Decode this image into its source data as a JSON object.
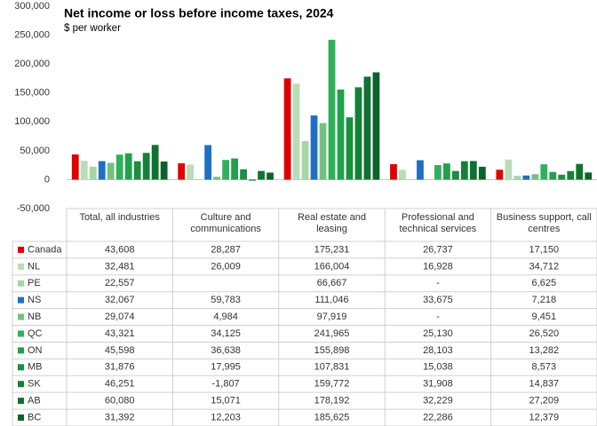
{
  "chart_data": {
    "type": "bar",
    "title": "Net income or loss before income taxes, 2024",
    "subtitle": "$ per worker",
    "categories": [
      "Total, all industries",
      "Culture and communications",
      "Real estate and leasing",
      "Professional and technical services",
      "Business support, call centres"
    ],
    "ylim": [
      -50000,
      300000
    ],
    "yticks": [
      {
        "value": -50000,
        "label": "-50,000"
      },
      0,
      {
        "value": 50000,
        "label": "50,000"
      },
      {
        "value": 100000,
        "label": "100,000"
      },
      {
        "value": 150000,
        "label": "150,000"
      },
      {
        "value": 200000,
        "label": "200,000"
      },
      {
        "value": 250000,
        "label": "250,000"
      },
      {
        "value": 300000,
        "label": "300,000"
      }
    ],
    "grid": false,
    "series": [
      {
        "name": "Canada",
        "color": "#e00000",
        "values": [
          43608,
          28287,
          175231,
          26737,
          17150
        ],
        "value_labels": [
          "43,608",
          "28,287",
          "175,231",
          "26,737",
          "17,150"
        ]
      },
      {
        "name": "NL",
        "color": "#b8ddb8",
        "values": [
          32481,
          26009,
          166004,
          16928,
          34712
        ],
        "value_labels": [
          "32,481",
          "26,009",
          "166,004",
          "16,928",
          "34,712"
        ]
      },
      {
        "name": "PE",
        "color": "#a6d6a6",
        "values": [
          22557,
          null,
          66667,
          null,
          6625
        ],
        "value_labels": [
          "22,557",
          null,
          "66,667",
          "-",
          "6,625"
        ]
      },
      {
        "name": "NS",
        "color": "#1f6fc4",
        "values": [
          32067,
          59783,
          111046,
          33675,
          7218
        ],
        "value_labels": [
          "32,067",
          "59,783",
          "111,046",
          "33,675",
          "7,218"
        ]
      },
      {
        "name": "NB",
        "color": "#74c17f",
        "values": [
          29074,
          4984,
          97919,
          null,
          9451
        ],
        "value_labels": [
          "29,074",
          "4,984",
          "97,919",
          "-",
          "9,451"
        ]
      },
      {
        "name": "QC",
        "color": "#2fb15a",
        "values": [
          43321,
          34125,
          241965,
          25130,
          26520
        ],
        "value_labels": [
          "43,321",
          "34,125",
          "241,965",
          "25,130",
          "26,520"
        ]
      },
      {
        "name": "ON",
        "color": "#22a04c",
        "values": [
          45598,
          36638,
          155898,
          28103,
          13282
        ],
        "value_labels": [
          "45,598",
          "36,638",
          "155,898",
          "28,103",
          "13,282"
        ]
      },
      {
        "name": "MB",
        "color": "#1a8f41",
        "values": [
          31876,
          17995,
          107831,
          15038,
          8573
        ],
        "value_labels": [
          "31,876",
          "17,995",
          "107,831",
          "15,038",
          "8,573"
        ]
      },
      {
        "name": "SK",
        "color": "#158039",
        "values": [
          46251,
          -1807,
          159772,
          31908,
          14837
        ],
        "value_labels": [
          "46,251",
          "-1,807",
          "159,772",
          "31,908",
          "14,837"
        ]
      },
      {
        "name": "AB",
        "color": "#107232",
        "values": [
          60080,
          15071,
          178192,
          32229,
          27209
        ],
        "value_labels": [
          "60,080",
          "15,071",
          "178,192",
          "32,229",
          "27,209"
        ]
      },
      {
        "name": "BC",
        "color": "#0c622a",
        "values": [
          31392,
          12203,
          185625,
          22286,
          12379
        ],
        "value_labels": [
          "31,392",
          "12,203",
          "185,625",
          "22,286",
          "12,379"
        ]
      }
    ]
  }
}
